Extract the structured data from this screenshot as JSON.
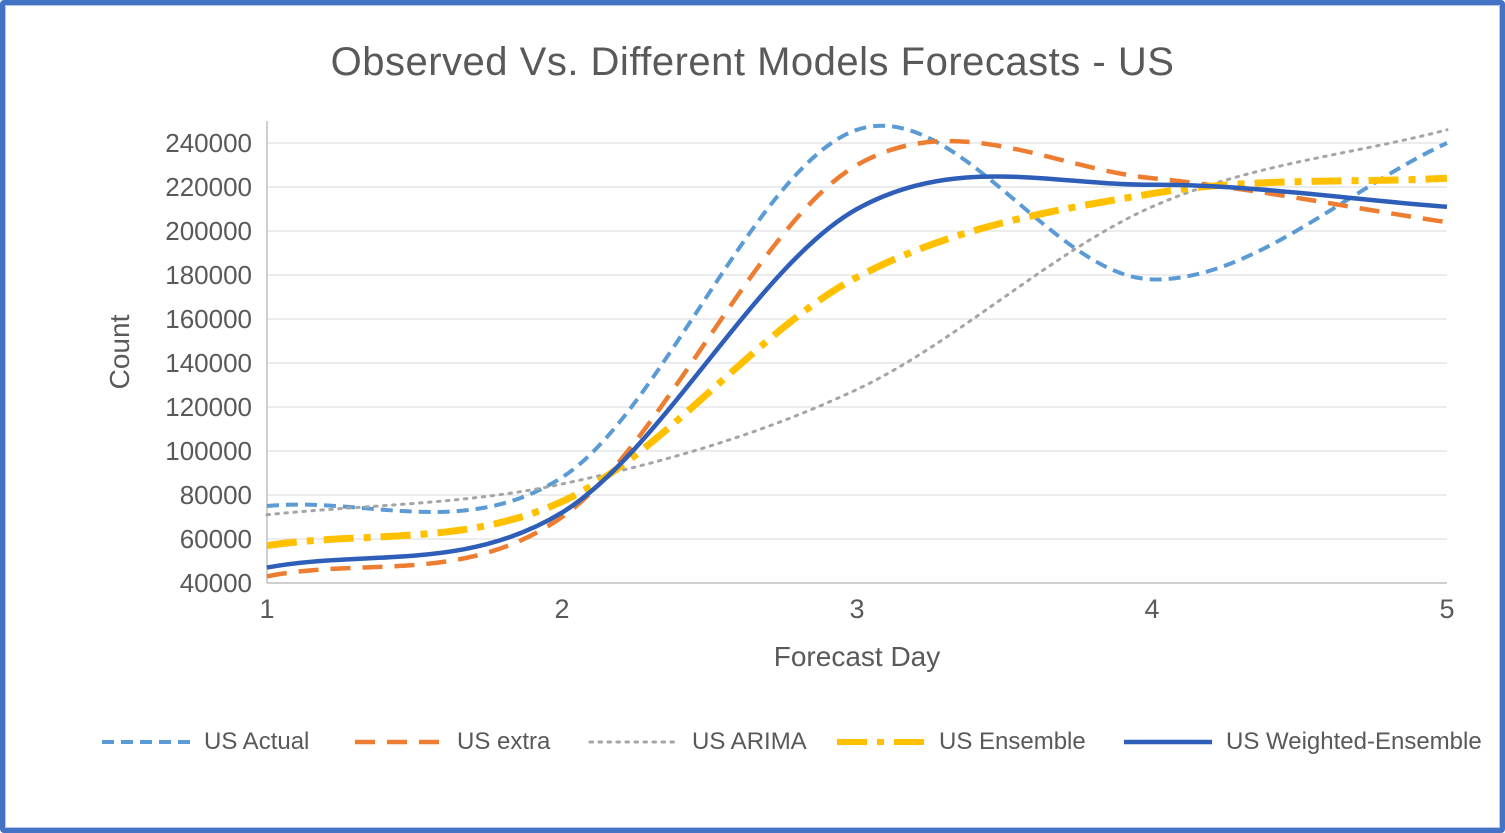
{
  "title": "Observed Vs. Different Models Forecasts - US",
  "frame": {
    "border_color": "#4472C4"
  },
  "chart_data": {
    "type": "line",
    "title": "Observed Vs. Different Models Forecasts - US",
    "xlabel": "Forecast Day",
    "ylabel": "Count",
    "x": [
      1,
      2,
      3,
      4,
      5
    ],
    "xlim": [
      1,
      5
    ],
    "ylim": [
      40000,
      250000
    ],
    "y_ticks": [
      40000,
      60000,
      80000,
      100000,
      120000,
      140000,
      160000,
      180000,
      200000,
      220000,
      240000
    ],
    "grid": true,
    "legend_position": "bottom",
    "line_smoothing": "catmull-rom",
    "series": [
      {
        "name": "US Actual",
        "color": "#5B9BD5",
        "style": "dashed",
        "width": 4,
        "dash": "12 7",
        "values": [
          75000,
          88000,
          246000,
          178000,
          240000
        ]
      },
      {
        "name": "US extra",
        "color": "#ED7D31",
        "style": "dashed",
        "width": 4.5,
        "dash": "20 12",
        "values": [
          43000,
          70000,
          230000,
          224000,
          204000
        ]
      },
      {
        "name": "US ARIMA",
        "color": "#A5A5A5",
        "style": "dotted",
        "width": 3,
        "dash": "2.5 6.5",
        "values": [
          71000,
          85000,
          128000,
          211000,
          246000
        ]
      },
      {
        "name": "US Ensemble",
        "color": "#FFC000",
        "style": "dash-dot-dot",
        "width": 7,
        "dash": "30 10 7 10",
        "values": [
          57000,
          77000,
          179000,
          217000,
          224000
        ]
      },
      {
        "name": "US Weighted-Ensemble",
        "color": "#2E5EB8",
        "style": "solid",
        "width": 4.5,
        "dash": "",
        "values": [
          47000,
          72000,
          210000,
          221000,
          211000
        ]
      }
    ],
    "axis_color": "#BFBFBF",
    "gridline_color": "#D9D9D9",
    "text_color": "#595959"
  }
}
